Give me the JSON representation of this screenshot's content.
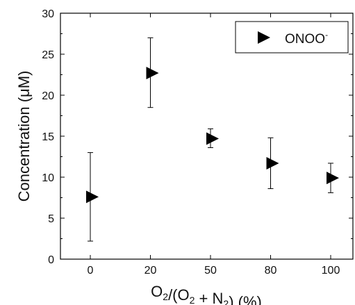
{
  "chart_data": {
    "type": "scatter",
    "categories": [
      "0",
      "20",
      "50",
      "80",
      "100"
    ],
    "series": [
      {
        "name": "ONOO",
        "name_superscript": "-",
        "marker": "right-triangle",
        "color": "#000000",
        "values": [
          7.6,
          22.7,
          14.7,
          11.7,
          9.9
        ],
        "error_low": [
          2.2,
          18.5,
          13.6,
          8.6,
          8.1
        ],
        "error_high": [
          13.0,
          27.0,
          15.9,
          14.8,
          11.7
        ]
      }
    ],
    "ylim": [
      0,
      30
    ],
    "yticks": [
      0,
      5,
      10,
      15,
      20,
      25,
      30
    ],
    "ylabel": "Concentration (μM)",
    "xlabel": {
      "parts": [
        {
          "text": "O",
          "sub": "2"
        },
        {
          "text": "/(O",
          "sub": "2"
        },
        {
          "text": " + N",
          "sub": "2"
        },
        {
          "text": ") (%)"
        }
      ]
    },
    "legend": "top-right",
    "grid": false
  }
}
